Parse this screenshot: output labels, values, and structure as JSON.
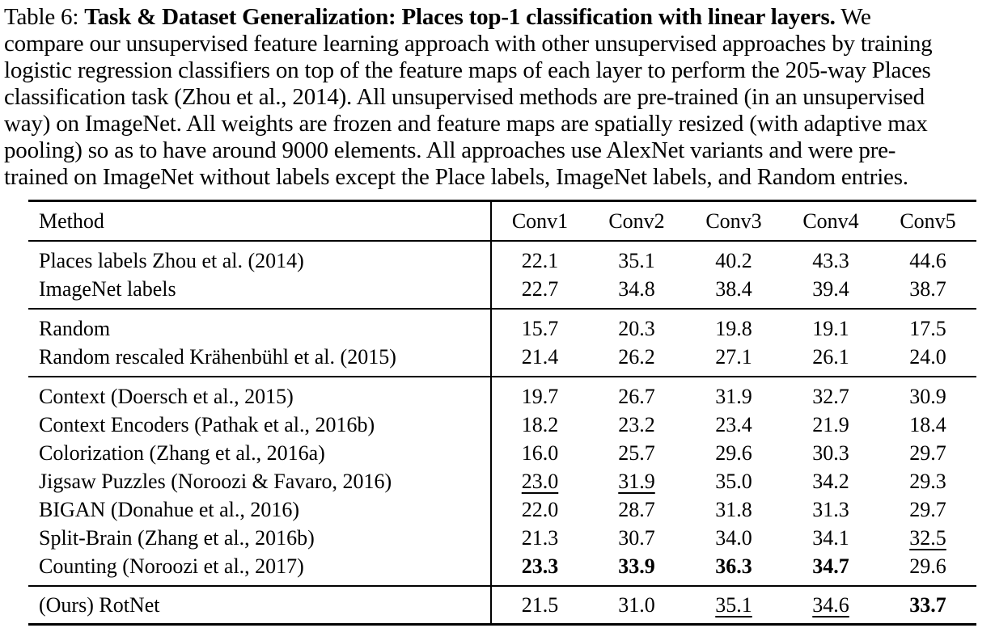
{
  "caption": {
    "label": "Table 6:",
    "line1": {
      "prefix": "Table 6: ",
      "bold": "Task & Dataset Generalization: Places top-1 classification with linear layers.",
      "suffix": " We"
    },
    "line2": "compare our unsupervised feature learning approach with other unsupervised approaches by training",
    "line3": "logistic regression classifiers on top of the feature maps of each layer to perform the 205-way Places",
    "line4": "classification task (Zhou et al., 2014). All unsupervised methods are pre-trained (in an unsupervised",
    "line5": "way) on ImageNet. All weights are frozen and feature maps are spatially resized (with adaptive max",
    "line6": "pooling) so as to have around 9000 elements. All approaches use AlexNet variants and were pre-",
    "line7": "trained on ImageNet without labels except the Place labels, ImageNet labels, and Random entries."
  },
  "table": {
    "columns": [
      "Method",
      "Conv1",
      "Conv2",
      "Conv3",
      "Conv4",
      "Conv5"
    ],
    "groups": [
      {
        "rows": [
          {
            "method": "Places labels Zhou et al. (2014)",
            "values": [
              "22.1",
              "35.1",
              "40.2",
              "43.3",
              "44.6"
            ]
          },
          {
            "method": "ImageNet labels",
            "values": [
              "22.7",
              "34.8",
              "38.4",
              "39.4",
              "38.7"
            ]
          }
        ]
      },
      {
        "rows": [
          {
            "method": "Random",
            "values": [
              "15.7",
              "20.3",
              "19.8",
              "19.1",
              "17.5"
            ]
          },
          {
            "method": "Random rescaled Krähenbühl et al. (2015)",
            "values": [
              "21.4",
              "26.2",
              "27.1",
              "26.1",
              "24.0"
            ]
          }
        ]
      },
      {
        "rows": [
          {
            "method": "Context (Doersch et al., 2015)",
            "values": [
              "19.7",
              "26.7",
              "31.9",
              "32.7",
              "30.9"
            ]
          },
          {
            "method": "Context Encoders (Pathak et al., 2016b)",
            "values": [
              "18.2",
              "23.2",
              "23.4",
              "21.9",
              "18.4"
            ]
          },
          {
            "method": "Colorization (Zhang et al., 2016a)",
            "values": [
              "16.0",
              "25.7",
              "29.6",
              "30.3",
              "29.7"
            ]
          },
          {
            "method": "Jigsaw Puzzles (Noroozi & Favaro, 2016)",
            "values": [
              "23.0",
              "31.9",
              "35.0",
              "34.2",
              "29.3"
            ],
            "underline": [
              0,
              1
            ]
          },
          {
            "method": "BIGAN (Donahue et al., 2016)",
            "values": [
              "22.0",
              "28.7",
              "31.8",
              "31.3",
              "29.7"
            ]
          },
          {
            "method": "Split-Brain (Zhang et al., 2016b)",
            "values": [
              "21.3",
              "30.7",
              "34.0",
              "34.1",
              "32.5"
            ],
            "underline": [
              4
            ]
          },
          {
            "method": "Counting (Noroozi et al., 2017)",
            "values": [
              "23.3",
              "33.9",
              "36.3",
              "34.7",
              "29.6"
            ],
            "bold": [
              0,
              1,
              2,
              3
            ]
          }
        ]
      },
      {
        "rows": [
          {
            "method": "(Ours) RotNet",
            "values": [
              "21.5",
              "31.0",
              "35.1",
              "34.6",
              "33.7"
            ],
            "underline": [
              2,
              3
            ],
            "bold": [
              4
            ]
          }
        ]
      }
    ]
  },
  "colors": {
    "text": "#000000",
    "background": "#ffffff",
    "rule": "#000000"
  }
}
